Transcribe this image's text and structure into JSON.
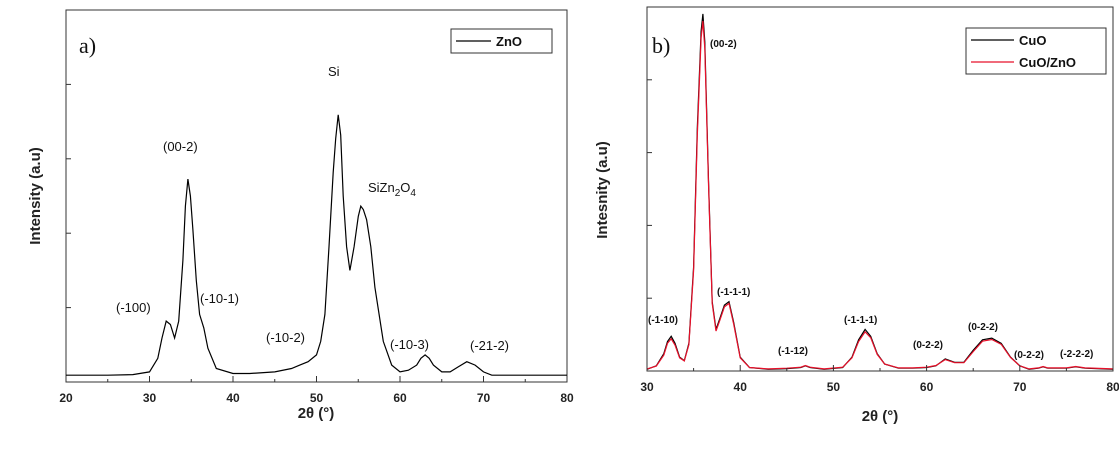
{
  "chart_data": [
    {
      "type": "line",
      "panel_label": "a)",
      "xlabel": "2θ (°)",
      "ylabel": "Intensity (a.u)",
      "xlim": [
        20,
        80
      ],
      "ylim": [
        0,
        110
      ],
      "xticks": [
        20,
        30,
        40,
        50,
        60,
        70,
        80
      ],
      "show_ytick_labels": false,
      "grid": false,
      "legend_position": "top-right",
      "series": [
        {
          "name": "ZnO",
          "color": "#000000",
          "x": [
            20,
            25,
            28,
            30,
            31,
            31.5,
            32,
            32.5,
            33,
            33.5,
            34,
            34.3,
            34.6,
            34.9,
            35.2,
            35.6,
            36,
            36.5,
            37,
            38,
            40,
            42,
            45,
            47,
            48,
            49,
            50,
            50.5,
            51,
            51.5,
            52,
            52.3,
            52.6,
            52.9,
            53.2,
            53.6,
            54,
            54.5,
            55,
            55.3,
            55.6,
            56,
            56.5,
            57,
            57.5,
            58,
            59,
            60,
            61,
            62,
            62.5,
            63,
            63.5,
            64,
            65,
            66,
            67,
            68,
            69,
            70,
            71,
            72,
            75,
            80
          ],
          "y": [
            2,
            2,
            2.2,
            3,
            7,
            13,
            18,
            17,
            13,
            18,
            36,
            52,
            60,
            55,
            45,
            30,
            20,
            16,
            10,
            4,
            2.5,
            2.5,
            3,
            4,
            5,
            6,
            8,
            12,
            20,
            40,
            62,
            72,
            79,
            73,
            55,
            40,
            33,
            40,
            49,
            52,
            51,
            48,
            40,
            28,
            20,
            12,
            5,
            3,
            3.5,
            5,
            7,
            8,
            7,
            5,
            3,
            3,
            4.5,
            6,
            5,
            3,
            2,
            2,
            2,
            2
          ]
        }
      ],
      "annotations": [
        "(-100)",
        "(00-2)",
        "(-10-1)",
        "Si",
        "(-10-2)",
        "SiZn2O4",
        "(-10-3)",
        "(-21-2)"
      ]
    },
    {
      "type": "line",
      "panel_label": "b)",
      "xlabel": "2θ (°)",
      "ylabel": "Intesnity (a.u)",
      "xlim": [
        30,
        80
      ],
      "ylim": [
        0,
        105
      ],
      "xticks": [
        30,
        40,
        50,
        60,
        70,
        80
      ],
      "show_ytick_labels": false,
      "grid": false,
      "legend_position": "top-right",
      "series": [
        {
          "name": "CuO",
          "color": "#000000",
          "x": [
            30,
            31,
            31.8,
            32.2,
            32.6,
            33,
            33.5,
            34,
            34.5,
            35,
            35.4,
            35.8,
            36,
            36.2,
            36.6,
            37,
            37.4,
            37.8,
            38.3,
            38.8,
            39.3,
            40,
            41,
            43,
            45,
            46.5,
            47,
            47.5,
            49,
            51,
            52,
            52.7,
            53.4,
            54,
            54.7,
            55.5,
            57,
            58.5,
            60,
            61,
            62,
            63,
            64,
            65,
            66,
            67,
            68,
            69,
            70,
            71,
            72,
            72.5,
            73,
            75,
            76,
            77,
            80
          ],
          "y": [
            0.5,
            1.5,
            5,
            8.5,
            10,
            8,
            4,
            3,
            8,
            30,
            70,
            98,
            103,
            95,
            55,
            20,
            12,
            15,
            19,
            20,
            14,
            4,
            1,
            0.5,
            0.7,
            1,
            1.5,
            1,
            0.5,
            1,
            4,
            9,
            12,
            10,
            5,
            2,
            0.8,
            0.8,
            1,
            1.5,
            3.5,
            2.5,
            2.5,
            6,
            9,
            9.5,
            8,
            4,
            1.5,
            0.5,
            0.8,
            1.2,
            0.8,
            0.8,
            1.2,
            0.8,
            0.5
          ]
        },
        {
          "name": "CuO/ZnO",
          "color": "#e8102a",
          "x": [
            30,
            31,
            31.8,
            32.2,
            32.6,
            33,
            33.5,
            34,
            34.5,
            35,
            35.4,
            35.8,
            36,
            36.2,
            36.6,
            37,
            37.4,
            37.8,
            38.3,
            38.8,
            39.3,
            40,
            41,
            43,
            45,
            46.5,
            47,
            47.5,
            49,
            51,
            52,
            52.7,
            53.4,
            54,
            54.7,
            55.5,
            57,
            58.5,
            60,
            61,
            62,
            63,
            64,
            65,
            66,
            67,
            68,
            69,
            70,
            71,
            72,
            72.5,
            73,
            75,
            76,
            77,
            80
          ],
          "y": [
            0.6,
            1.4,
            4.6,
            8,
            9.3,
            7.5,
            3.8,
            2.9,
            7.6,
            29,
            68,
            96,
            101,
            93,
            54,
            19.5,
            11.5,
            14.5,
            18.5,
            19.5,
            13.5,
            3.8,
            1,
            0.6,
            0.8,
            1.1,
            1.6,
            1.1,
            0.6,
            1.1,
            3.8,
            8.5,
            11.3,
            9.6,
            4.8,
            2,
            0.9,
            0.9,
            1.1,
            1.6,
            3.3,
            2.4,
            2.4,
            5.6,
            8.6,
            9.1,
            7.7,
            3.9,
            1.5,
            0.6,
            0.9,
            1.3,
            0.9,
            0.9,
            1.3,
            0.9,
            0.6
          ]
        }
      ],
      "annotations": [
        "(00-2)",
        "(-1-10)",
        "(-1-1-1)",
        "(-1-12)",
        "(-1-1-1)",
        "(0-2-2)",
        "(0-2-2)",
        "(0-2-2)",
        "(-2-2-2)"
      ]
    }
  ]
}
